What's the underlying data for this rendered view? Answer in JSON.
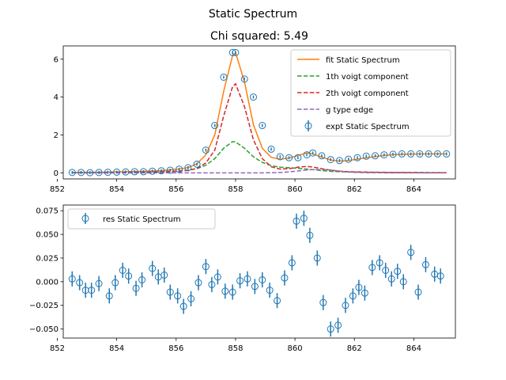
{
  "chart_data": {
    "suptitle": "Static Spectrum",
    "panels": [
      {
        "type": "line",
        "title": "Chi squared:  5.49",
        "xlim": [
          852.2,
          865.4
        ],
        "ylim": [
          -0.32,
          6.7
        ],
        "xticks": [
          852,
          854,
          856,
          858,
          860,
          862,
          864
        ],
        "yticks": [
          0,
          2,
          4,
          6
        ],
        "legend": {
          "position": "top-right",
          "entries": [
            {
              "label": "fit Static Spectrum",
              "color": "#ff7f0e",
              "style": "solid"
            },
            {
              "label": "1th voigt component",
              "color": "#2ca02c",
              "style": "dashed"
            },
            {
              "label": "2th voigt component",
              "color": "#d62728",
              "style": "dashed"
            },
            {
              "label": "g type edge",
              "color": "#9467bd",
              "style": "dashed"
            },
            {
              "label": "expt Static Spectrum",
              "color": "#1f77b4",
              "style": "errorbar-circle"
            }
          ]
        },
        "x": [
          852.5,
          852.8,
          853.1,
          853.4,
          853.7,
          854.0,
          854.3,
          854.6,
          854.9,
          855.2,
          855.5,
          855.8,
          856.1,
          856.4,
          856.7,
          857.0,
          857.3,
          857.6,
          857.9,
          858.0,
          858.3,
          858.6,
          858.9,
          859.2,
          859.5,
          859.8,
          860.1,
          860.4,
          860.6,
          860.9,
          861.2,
          861.5,
          861.8,
          862.1,
          862.4,
          862.7,
          863.0,
          863.3,
          863.6,
          863.9,
          864.2,
          864.5,
          864.8,
          865.1
        ],
        "series": [
          {
            "name": "fit Static Spectrum",
            "color": "#ff7f0e",
            "style": "solid",
            "values": [
              0.02,
              0.03,
              0.03,
              0.03,
              0.04,
              0.05,
              0.06,
              0.07,
              0.08,
              0.1,
              0.12,
              0.16,
              0.2,
              0.28,
              0.48,
              0.95,
              2.0,
              4.3,
              6.2,
              6.35,
              4.8,
              2.55,
              1.3,
              0.82,
              0.72,
              0.78,
              0.92,
              1.05,
              1.0,
              0.83,
              0.68,
              0.62,
              0.65,
              0.72,
              0.8,
              0.86,
              0.92,
              0.96,
              0.98,
              0.99,
              1.0,
              1.0,
              1.0,
              1.0
            ]
          },
          {
            "name": "1th voigt component",
            "color": "#2ca02c",
            "style": "dashed",
            "values": [
              0.01,
              0.01,
              0.01,
              0.02,
              0.02,
              0.02,
              0.03,
              0.03,
              0.04,
              0.05,
              0.06,
              0.08,
              0.1,
              0.14,
              0.22,
              0.4,
              0.75,
              1.3,
              1.65,
              1.63,
              1.3,
              0.85,
              0.55,
              0.38,
              0.3,
              0.27,
              0.24,
              0.2,
              0.17,
              0.12,
              0.08,
              0.06,
              0.05,
              0.04,
              0.03,
              0.03,
              0.02,
              0.02,
              0.02,
              0.01,
              0.01,
              0.01,
              0.01,
              0.01
            ]
          },
          {
            "name": "2th voigt component",
            "color": "#d62728",
            "style": "dashed",
            "values": [
              0.01,
              0.01,
              0.01,
              0.02,
              0.02,
              0.02,
              0.03,
              0.03,
              0.04,
              0.05,
              0.06,
              0.07,
              0.09,
              0.13,
              0.24,
              0.52,
              1.2,
              3.0,
              4.55,
              4.7,
              3.5,
              1.75,
              0.75,
              0.32,
              0.2,
              0.22,
              0.3,
              0.34,
              0.31,
              0.22,
              0.14,
              0.09,
              0.06,
              0.05,
              0.04,
              0.03,
              0.03,
              0.02,
              0.02,
              0.02,
              0.02,
              0.01,
              0.01,
              0.01
            ]
          },
          {
            "name": "g type edge",
            "color": "#9467bd",
            "style": "dashed",
            "values": [
              0,
              0,
              0,
              0,
              0,
              0,
              0,
              0,
              0,
              0,
              0,
              0,
              0,
              0,
              0,
              0,
              0,
              0,
              0,
              0,
              0,
              0,
              0,
              0.01,
              0.02,
              0.05,
              0.1,
              0.15,
              0.17,
              0.18,
              0.15,
              0.09,
              0.04,
              0.02,
              0.01,
              0.01,
              0,
              0,
              0,
              0,
              0,
              0,
              0,
              0
            ]
          },
          {
            "name": "expt Static Spectrum",
            "color": "#1f77b4",
            "style": "errorbar-circle",
            "values": [
              0.02,
              0.02,
              0.01,
              0.02,
              0.03,
              0.04,
              0.05,
              0.06,
              0.06,
              0.09,
              0.11,
              0.14,
              0.19,
              0.27,
              0.46,
              1.2,
              2.5,
              5.05,
              6.35,
              6.35,
              4.95,
              4.0,
              2.5,
              1.25,
              0.85,
              0.8,
              0.8,
              0.95,
              1.05,
              0.9,
              0.7,
              0.65,
              0.72,
              0.8,
              0.88,
              0.9,
              0.95,
              0.98,
              1.0,
              1.0,
              1.0,
              1.0,
              1.0,
              1.0
            ],
            "yerr": 0.08
          }
        ]
      },
      {
        "type": "scatter",
        "title": "",
        "xlim": [
          852.2,
          865.4
        ],
        "ylim": [
          -0.0595,
          0.081
        ],
        "xticks": [
          852,
          854,
          856,
          858,
          860,
          862,
          864
        ],
        "yticks": [
          -0.05,
          -0.025,
          0.0,
          0.025,
          0.05,
          0.075
        ],
        "ytick_labels": [
          "−0.050",
          "−0.025",
          "0.000",
          "0.025",
          "0.050",
          "0.075"
        ],
        "legend": {
          "position": "top-left",
          "entries": [
            {
              "label": "res Static Spectrum",
              "color": "#1f77b4",
              "style": "errorbar-circle"
            }
          ]
        },
        "x": [
          852.5,
          852.75,
          852.95,
          853.15,
          853.4,
          853.75,
          853.95,
          854.2,
          854.4,
          854.65,
          854.85,
          855.2,
          855.4,
          855.6,
          855.8,
          856.05,
          856.25,
          856.5,
          856.75,
          857.0,
          857.2,
          857.4,
          857.65,
          857.9,
          858.15,
          858.4,
          858.65,
          858.9,
          859.15,
          859.4,
          859.65,
          859.9,
          860.05,
          860.3,
          860.5,
          860.75,
          860.95,
          861.2,
          861.45,
          861.7,
          861.95,
          862.15,
          862.35,
          862.6,
          862.85,
          863.05,
          863.25,
          863.45,
          863.65,
          863.9,
          864.15,
          864.4,
          864.7,
          864.9
        ],
        "series": [
          {
            "name": "res Static Spectrum",
            "color": "#1f77b4",
            "style": "errorbar-circle",
            "values": [
              0.003,
              -0.001,
              -0.009,
              -0.009,
              -0.002,
              -0.015,
              -0.001,
              0.012,
              0.006,
              -0.007,
              0.002,
              0.014,
              0.005,
              0.007,
              -0.011,
              -0.015,
              -0.026,
              -0.018,
              -0.001,
              0.016,
              -0.003,
              0.005,
              -0.01,
              -0.011,
              0.001,
              0.003,
              -0.005,
              0.002,
              -0.009,
              -0.02,
              0.004,
              0.02,
              0.064,
              0.067,
              0.049,
              0.025,
              -0.022,
              -0.05,
              -0.046,
              -0.025,
              -0.015,
              -0.006,
              -0.012,
              0.015,
              0.02,
              0.012,
              0.003,
              0.011,
              0.0,
              0.031,
              -0.011,
              0.018,
              0.008,
              0.006
            ],
            "yerr": 0.008
          }
        ]
      }
    ]
  }
}
